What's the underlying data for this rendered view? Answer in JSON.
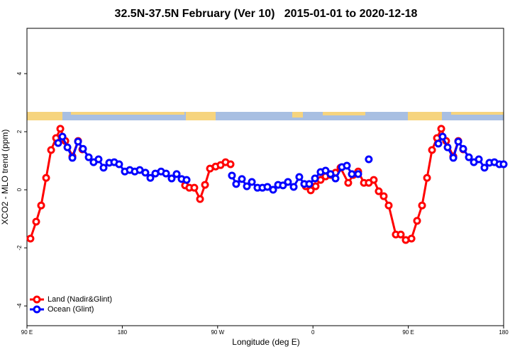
{
  "chart_data": {
    "type": "line",
    "title": "32.5N-37.5N February (Ver 10)   2015-01-01 to 2020-12-18",
    "x_label": "Longitude (deg E)",
    "y_label": "XCO2 - MLO trend (ppm)",
    "xlim": [
      90,
      540
    ],
    "ylim": [
      -4.68,
      5.56
    ],
    "xticks": [
      {
        "value": 90,
        "label": "90 E"
      },
      180,
      {
        "value": 270,
        "label": "90 W"
      },
      {
        "value": 360,
        "label": "0"
      },
      {
        "value": 450,
        "label": "90 E"
      },
      {
        "value": 540,
        "label": "180"
      }
    ],
    "yticks": [
      -4,
      -2,
      0,
      2,
      4
    ],
    "legend": "bottom-left",
    "series": [
      {
        "name": "Land (Nadir&Glint)",
        "color": "#ff0000",
        "x": [
          93.3,
          98.7,
          103.4,
          108.1,
          112.8,
          117.5,
          121.5,
          126.2,
          132.9,
          138.3,
          142.3,
          null,
          239.3,
          243.3,
          248.0,
          253.4,
          258.1,
          262.8,
          268.1,
          272.8,
          277.5,
          282.2,
          null,
          353.2,
          357.9,
          362.5,
          367.2,
          371.9,
          376.6,
          381.3,
          386.0,
          393.3,
          398.0,
          402.7,
          408.1,
          412.7,
          417.4,
          422.1,
          426.8,
          431.5,
          438.2,
          442.9,
          447.6,
          453.0,
          458.3,
          463.0,
          467.7,
          472.4,
          477.1,
          481.1,
          485.7,
          492.5,
          497.2,
          501.8
        ],
        "values": [
          -1.68,
          -1.1,
          -0.54,
          0.41,
          1.37,
          1.78,
          2.1,
          1.68,
          1.15,
          1.68,
          1.39,
          null,
          0.15,
          0.07,
          0.07,
          -0.32,
          0.17,
          0.73,
          0.8,
          0.85,
          0.95,
          0.88,
          null,
          0.12,
          -0.02,
          0.12,
          0.34,
          0.46,
          0.51,
          0.59,
          0.76,
          0.24,
          0.51,
          0.63,
          0.24,
          0.24,
          0.34,
          -0.05,
          -0.22,
          -0.54,
          -1.54,
          -1.54,
          -1.73,
          -1.68,
          -1.07,
          -0.54,
          0.41,
          1.37,
          1.78,
          2.1,
          1.68,
          1.15,
          1.68,
          1.39
        ]
      },
      {
        "name": "Ocean (Glint)",
        "color": "#0000ff",
        "x": [
          119.5,
          123.5,
          128.2,
          132.9,
          138.2,
          142.9,
          148.3,
          152.9,
          157.6,
          162.3,
          167.7,
          172.4,
          177.0,
          182.4,
          187.1,
          191.8,
          196.5,
          201.8,
          206.5,
          211.2,
          216.6,
          221.3,
          226.6,
          231.3,
          236.0,
          240.7,
          null,
          283.5,
          287.5,
          292.9,
          297.6,
          302.3,
          307.6,
          312.3,
          317.0,
          322.4,
          327.1,
          331.7,
          336.4,
          341.8,
          347.1,
          351.8,
          356.5,
          361.9,
          367.2,
          371.9,
          376.6,
          381.3,
          387.3,
          392.0,
          396.7,
          402.7,
          null,
          412.7,
          null,
          478.4,
          482.4,
          487.1,
          492.5,
          497.2,
          501.8,
          507.2,
          511.9,
          516.6,
          521.9,
          526.6,
          531.3,
          536.0,
          540
        ],
        "values": [
          1.61,
          1.83,
          1.46,
          1.1,
          1.66,
          1.41,
          1.12,
          0.95,
          1.05,
          0.76,
          0.93,
          0.95,
          0.88,
          0.63,
          0.68,
          0.63,
          0.68,
          0.59,
          0.41,
          0.56,
          0.63,
          0.56,
          0.39,
          0.54,
          0.37,
          0.34,
          null,
          0.49,
          0.2,
          0.37,
          0.12,
          0.27,
          0.07,
          0.07,
          0.1,
          0.0,
          0.17,
          0.15,
          0.27,
          0.1,
          0.44,
          0.2,
          0.2,
          0.39,
          0.61,
          0.66,
          0.54,
          0.39,
          0.78,
          0.83,
          0.54,
          0.54,
          null,
          1.05,
          null,
          1.59,
          1.83,
          1.46,
          1.1,
          1.66,
          1.41,
          1.12,
          0.95,
          1.05,
          0.76,
          0.93,
          0.95,
          0.88,
          0.88
        ]
      }
    ]
  }
}
